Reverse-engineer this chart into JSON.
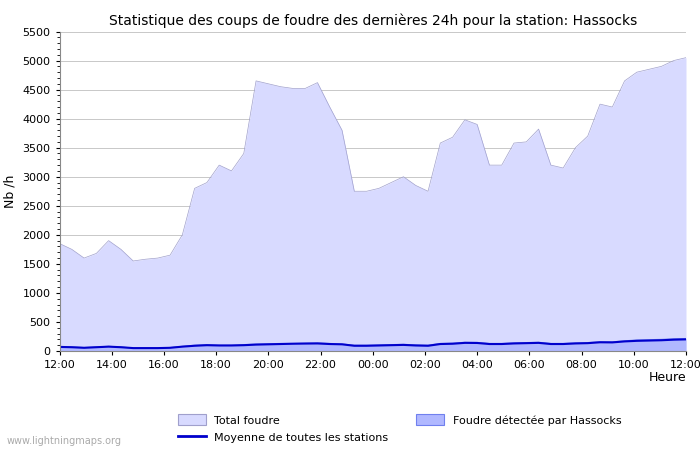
{
  "title": "Statistique des coups de foudre des dernières 24h pour la station: Hassocks",
  "xlabel": "Heure",
  "ylabel": "Nb /h",
  "watermark": "www.lightningmaps.org",
  "ylim": [
    0,
    5500
  ],
  "yticks": [
    0,
    500,
    1000,
    1500,
    2000,
    2500,
    3000,
    3500,
    4000,
    4500,
    5000,
    5500
  ],
  "xtick_labels": [
    "12:00",
    "14:00",
    "16:00",
    "18:00",
    "20:00",
    "22:00",
    "00:00",
    "02:00",
    "04:00",
    "06:00",
    "08:00",
    "10:00",
    "12:00"
  ],
  "bg_color": "#ffffff",
  "plot_bg_color": "#ffffff",
  "grid_color": "#c8c8c8",
  "total_foudre_color": "#d8daff",
  "total_foudre_edge": "#a0a0cc",
  "hassocks_color": "#b0b8ff",
  "hassocks_edge": "#7080ee",
  "moyenne_color": "#0000cc",
  "total_foudre_v2": [
    1850,
    1750,
    1600,
    1680,
    1900,
    1750,
    1550,
    1580,
    1600,
    1650,
    2000,
    2800,
    2900,
    3200,
    3100,
    3400,
    4650,
    4600,
    4550,
    4520,
    4520,
    4620,
    4200,
    3800,
    2750,
    2750,
    2800,
    2900,
    3000,
    2850,
    2750,
    3580,
    3680,
    3980,
    3900,
    3200,
    3200,
    3580,
    3600,
    3820,
    3200,
    3150,
    3500,
    3700,
    4250,
    4200,
    4650,
    4800,
    4850,
    4900,
    5000,
    5050
  ],
  "hassocks_v2": [
    80,
    70,
    60,
    70,
    80,
    70,
    50,
    50,
    50,
    60,
    80,
    100,
    110,
    100,
    100,
    110,
    120,
    125,
    130,
    130,
    135,
    140,
    130,
    120,
    100,
    100,
    105,
    110,
    115,
    105,
    100,
    130,
    135,
    150,
    148,
    130,
    130,
    140,
    145,
    150,
    130,
    130,
    140,
    145,
    160,
    158,
    175,
    190,
    195,
    200,
    210,
    215
  ],
  "moyenne_v2": [
    70,
    65,
    55,
    65,
    75,
    65,
    50,
    50,
    50,
    55,
    75,
    90,
    100,
    95,
    95,
    100,
    110,
    115,
    120,
    125,
    128,
    130,
    120,
    115,
    90,
    90,
    95,
    100,
    105,
    95,
    90,
    120,
    125,
    140,
    138,
    120,
    120,
    130,
    135,
    140,
    120,
    120,
    130,
    135,
    150,
    148,
    165,
    175,
    180,
    185,
    195,
    200
  ]
}
